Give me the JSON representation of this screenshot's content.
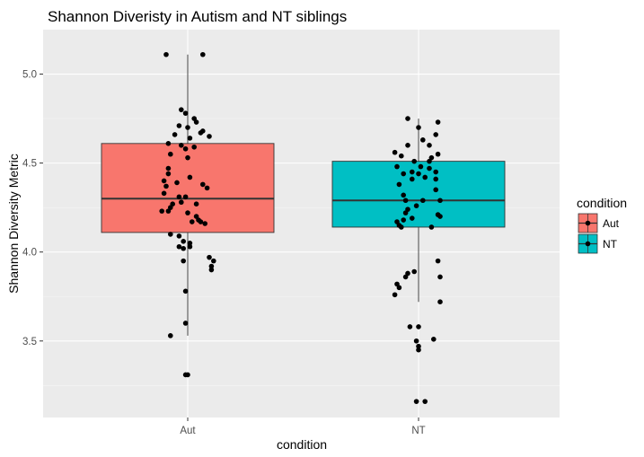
{
  "chart_data": {
    "type": "boxplot",
    "title": "Shannon Diveristy in Autism and NT siblings",
    "xlabel": "condition",
    "ylabel": "Shannon Diversity Metric",
    "categories": [
      "Aut",
      "NT"
    ],
    "ylim": [
      3.07,
      5.25
    ],
    "yticks": [
      3.5,
      4.0,
      4.5,
      5.0
    ],
    "ytick_labels": [
      "3.5",
      "4.0",
      "4.5",
      "5.0"
    ],
    "legend": {
      "title": "condition",
      "placement": "right",
      "items": [
        {
          "label": "Aut",
          "color": "#F8766D"
        },
        {
          "label": "NT",
          "color": "#00BFC4"
        }
      ]
    },
    "panel_background": "#EBEBEB",
    "grid": true,
    "series": [
      {
        "category": "Aut",
        "fill": "#F8766D",
        "box": {
          "q1": 4.11,
          "median": 4.3,
          "q3": 4.61,
          "whisker_low": 3.53,
          "whisker_high": 5.11
        },
        "points": [
          [
            -0.1,
            5.11
          ],
          [
            0.07,
            5.11
          ],
          [
            -0.03,
            4.8
          ],
          [
            -0.01,
            4.78
          ],
          [
            0.03,
            4.75
          ],
          [
            0.04,
            4.73
          ],
          [
            -0.04,
            4.71
          ],
          [
            0.0,
            4.7
          ],
          [
            0.07,
            4.68
          ],
          [
            0.06,
            4.67
          ],
          [
            -0.06,
            4.66
          ],
          [
            0.1,
            4.65
          ],
          [
            0.01,
            4.64
          ],
          [
            -0.09,
            4.61
          ],
          [
            -0.03,
            4.6
          ],
          [
            0.03,
            4.59
          ],
          [
            -0.01,
            4.58
          ],
          [
            -0.08,
            4.55
          ],
          [
            0.0,
            4.53
          ],
          [
            -0.09,
            4.47
          ],
          [
            -0.09,
            4.44
          ],
          [
            0.01,
            4.42
          ],
          [
            -0.11,
            4.4
          ],
          [
            -0.05,
            4.39
          ],
          [
            -0.1,
            4.37
          ],
          [
            0.07,
            4.38
          ],
          [
            0.09,
            4.36
          ],
          [
            -0.11,
            4.33
          ],
          [
            -0.04,
            4.31
          ],
          [
            -0.01,
            4.31
          ],
          [
            -0.03,
            4.28
          ],
          [
            0.04,
            4.27
          ],
          [
            -0.07,
            4.27
          ],
          [
            -0.08,
            4.25
          ],
          [
            -0.12,
            4.23
          ],
          [
            -0.09,
            4.23
          ],
          [
            0.0,
            4.22
          ],
          [
            0.04,
            4.2
          ],
          [
            0.05,
            4.18
          ],
          [
            0.06,
            4.17
          ],
          [
            0.02,
            4.17
          ],
          [
            0.08,
            4.16
          ],
          [
            -0.08,
            4.1
          ],
          [
            -0.04,
            4.09
          ],
          [
            -0.02,
            4.06
          ],
          [
            0.01,
            4.05
          ],
          [
            -0.04,
            4.03
          ],
          [
            0.01,
            4.03
          ],
          [
            -0.02,
            4.02
          ],
          [
            0.1,
            3.97
          ],
          [
            0.12,
            3.95
          ],
          [
            -0.02,
            3.95
          ],
          [
            0.11,
            3.92
          ],
          [
            0.11,
            3.9
          ],
          [
            -0.01,
            3.78
          ],
          [
            -0.01,
            3.6
          ],
          [
            -0.08,
            3.53
          ],
          [
            -0.01,
            3.31
          ],
          [
            0.0,
            3.31
          ]
        ]
      },
      {
        "category": "NT",
        "fill": "#00BFC4",
        "box": {
          "q1": 4.14,
          "median": 4.29,
          "q3": 4.51,
          "whisker_low": 3.72,
          "whisker_high": 4.75
        },
        "points": [
          [
            -0.05,
            4.75
          ],
          [
            0.09,
            4.73
          ],
          [
            0.0,
            4.7
          ],
          [
            0.08,
            4.66
          ],
          [
            0.02,
            4.63
          ],
          [
            -0.05,
            4.6
          ],
          [
            0.05,
            4.6
          ],
          [
            -0.11,
            4.56
          ],
          [
            0.09,
            4.55
          ],
          [
            -0.08,
            4.54
          ],
          [
            0.06,
            4.53
          ],
          [
            -0.02,
            4.51
          ],
          [
            0.05,
            4.51
          ],
          [
            -0.1,
            4.48
          ],
          [
            0.01,
            4.48
          ],
          [
            0.05,
            4.47
          ],
          [
            0.08,
            4.45
          ],
          [
            -0.03,
            4.45
          ],
          [
            -0.07,
            4.44
          ],
          [
            0.0,
            4.44
          ],
          [
            0.03,
            4.42
          ],
          [
            0.08,
            4.41
          ],
          [
            -0.03,
            4.41
          ],
          [
            -0.09,
            4.38
          ],
          [
            0.08,
            4.35
          ],
          [
            -0.07,
            4.32
          ],
          [
            0.02,
            4.29
          ],
          [
            -0.06,
            4.29
          ],
          [
            0.1,
            4.29
          ],
          [
            -0.01,
            4.26
          ],
          [
            -0.05,
            4.24
          ],
          [
            -0.06,
            4.22
          ],
          [
            0.09,
            4.21
          ],
          [
            0.1,
            4.2
          ],
          [
            -0.03,
            4.19
          ],
          [
            -0.07,
            4.18
          ],
          [
            -0.1,
            4.17
          ],
          [
            -0.09,
            4.15
          ],
          [
            -0.08,
            4.14
          ],
          [
            0.06,
            4.14
          ],
          [
            0.09,
            3.95
          ],
          [
            -0.02,
            3.89
          ],
          [
            -0.05,
            3.88
          ],
          [
            -0.06,
            3.86
          ],
          [
            0.1,
            3.86
          ],
          [
            -0.1,
            3.82
          ],
          [
            -0.09,
            3.8
          ],
          [
            -0.11,
            3.76
          ],
          [
            0.1,
            3.72
          ],
          [
            -0.04,
            3.58
          ],
          [
            0.0,
            3.58
          ],
          [
            0.07,
            3.51
          ],
          [
            -0.01,
            3.5
          ],
          [
            0.0,
            3.47
          ],
          [
            0.0,
            3.45
          ],
          [
            -0.01,
            3.16
          ],
          [
            0.03,
            3.16
          ]
        ]
      }
    ]
  }
}
